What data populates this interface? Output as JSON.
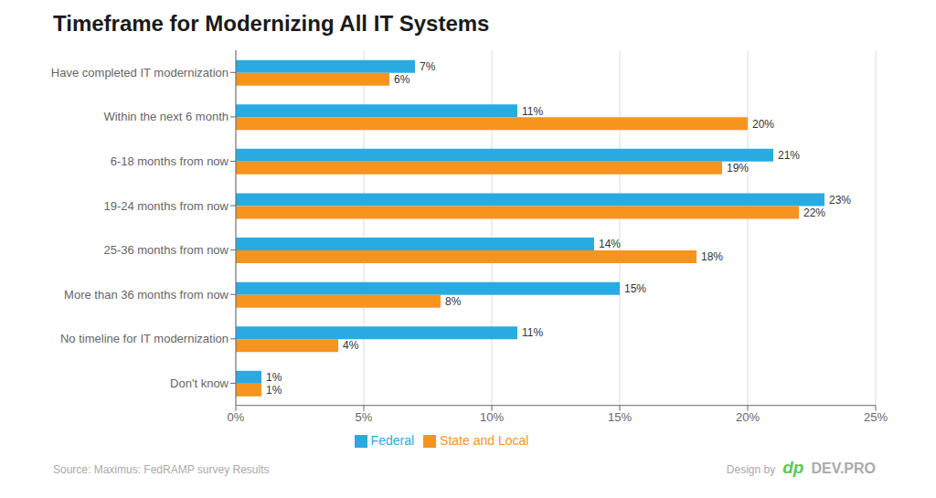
{
  "chart_data": {
    "type": "bar",
    "orientation": "horizontal",
    "title": "Timeframe for Modernizing All IT Systems",
    "categories": [
      "Have completed IT modernization",
      "Within the next 6 month",
      "6-18 months from now",
      "19-24 months from now",
      "25-36 months from now",
      "More than 36 months from now",
      "No timeline for IT modernization",
      "Don't know"
    ],
    "series": [
      {
        "name": "Federal",
        "color": "#29ABE2",
        "values": [
          7,
          11,
          21,
          23,
          14,
          15,
          11,
          1
        ],
        "value_labels": [
          "7%",
          "11%",
          "21%",
          "23%",
          "14%",
          "15%",
          "11%",
          "1%"
        ]
      },
      {
        "name": "State and Local",
        "color": "#F7941D",
        "values": [
          6,
          20,
          19,
          22,
          18,
          8,
          4,
          1
        ],
        "value_labels": [
          "6%",
          "20%",
          "19%",
          "22%",
          "18%",
          "8%",
          "4%",
          "1%"
        ]
      }
    ],
    "xlim": [
      0,
      25
    ],
    "xticks": [
      {
        "value": 0,
        "label": "0%"
      },
      {
        "value": 5,
        "label": "5%"
      },
      {
        "value": 10,
        "label": "10%"
      },
      {
        "value": 15,
        "label": "15%"
      },
      {
        "value": 20,
        "label": "20%"
      },
      {
        "value": 25,
        "label": "25%"
      }
    ],
    "grid": true,
    "legend": "bottom",
    "data_labels": true,
    "annotations": [
      {
        "text": "Source: Maximus: FedRAMP survey Results"
      },
      {
        "text": "Design by"
      },
      {
        "text": "dp",
        "color": "#5DC85A"
      },
      {
        "text": "DEV.PRO"
      }
    ]
  }
}
